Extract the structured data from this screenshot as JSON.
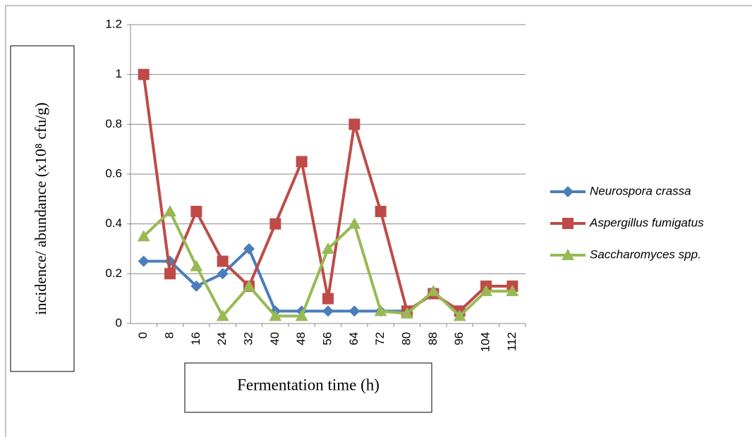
{
  "chart_data": {
    "type": "line",
    "xlabel": "Fermentation time (h)",
    "ylabel": "incidence/ abundance (x10⁸ cfu/g)",
    "categories": [
      "0",
      "8",
      "16",
      "24",
      "32",
      "40",
      "48",
      "56",
      "64",
      "72",
      "80",
      "88",
      "96",
      "104",
      "112"
    ],
    "series": [
      {
        "name": "Neurospora crassa",
        "color": "#4a7ebb",
        "marker": "diamond",
        "values": [
          0.25,
          0.25,
          0.15,
          0.2,
          0.3,
          0.05,
          0.05,
          0.05,
          0.05,
          0.05,
          0.05,
          0.12,
          0.05,
          0.15,
          0.15
        ]
      },
      {
        "name": "Aspergillus fumigatus",
        "color": "#be4b48",
        "marker": "square",
        "values": [
          1,
          0.2,
          0.45,
          0.25,
          0.15,
          0.4,
          0.65,
          0.1,
          0.8,
          0.45,
          0.05,
          0.12,
          0.05,
          0.15,
          0.15
        ]
      },
      {
        "name": "Saccharomyces spp.",
        "color": "#98b954",
        "marker": "triangle",
        "values": [
          0.35,
          0.45,
          0.23,
          0.03,
          0.15,
          0.03,
          0.03,
          0.3,
          0.4,
          0.05,
          0.04,
          0.13,
          0.03,
          0.13,
          0.13
        ]
      }
    ],
    "ylim": [
      0,
      1.2
    ],
    "yticks": [
      0,
      0.2,
      0.4,
      0.6,
      0.8,
      1,
      1.2
    ],
    "grid": true,
    "legend": "right"
  }
}
